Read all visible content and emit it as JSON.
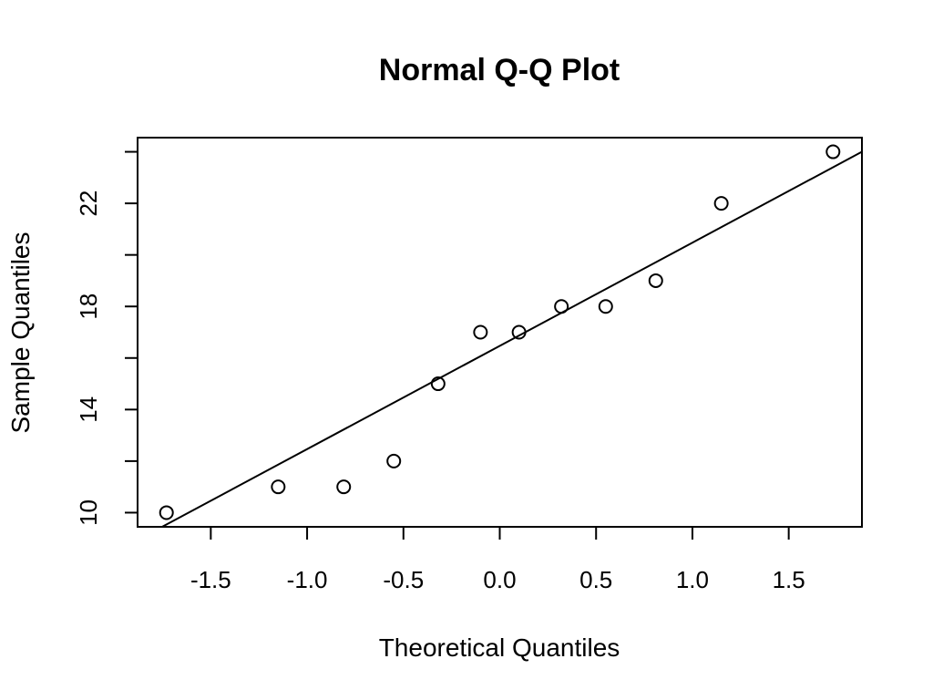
{
  "chart_data": {
    "type": "scatter",
    "title": "Normal Q-Q Plot",
    "xlabel": "Theoretical Quantiles",
    "ylabel": "Sample Quantiles",
    "xlim": [
      -1.88,
      1.88
    ],
    "ylim": [
      9.45,
      24.55
    ],
    "x_ticks": [
      -1.5,
      -1.0,
      -0.5,
      0.0,
      0.5,
      1.0,
      1.5
    ],
    "x_tick_labels": [
      "-1.5",
      "-1.0",
      "-0.5",
      "0.0",
      "0.5",
      "1.0",
      "1.5"
    ],
    "y_ticks": [
      10,
      12,
      14,
      16,
      18,
      20,
      22,
      24
    ],
    "y_tick_labels": [
      "10",
      "",
      "14",
      "",
      "18",
      "",
      "22",
      ""
    ],
    "points": [
      {
        "x": -1.73,
        "y": 10
      },
      {
        "x": -1.15,
        "y": 11
      },
      {
        "x": -0.81,
        "y": 11
      },
      {
        "x": -0.55,
        "y": 12
      },
      {
        "x": -0.32,
        "y": 15
      },
      {
        "x": -0.1,
        "y": 17
      },
      {
        "x": 0.1,
        "y": 17
      },
      {
        "x": 0.32,
        "y": 18
      },
      {
        "x": 0.55,
        "y": 18
      },
      {
        "x": 0.81,
        "y": 19
      },
      {
        "x": 1.15,
        "y": 22
      },
      {
        "x": 1.73,
        "y": 24
      }
    ],
    "qq_line": {
      "x1": -1.88,
      "y1": 8.94,
      "x2": 1.88,
      "y2": 24.0
    },
    "grid": false,
    "legend": "none"
  }
}
